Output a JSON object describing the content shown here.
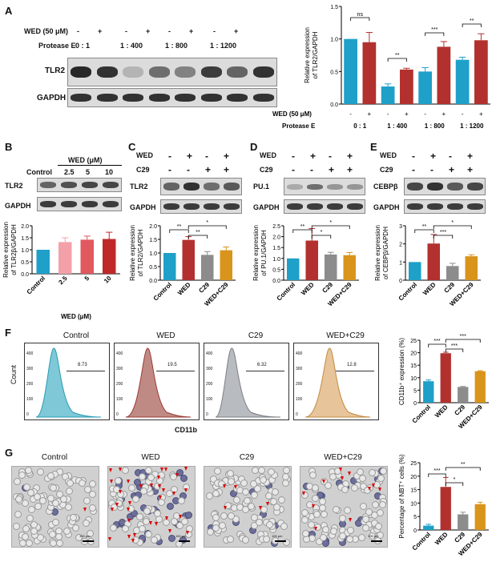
{
  "panels": [
    "A",
    "B",
    "C",
    "D",
    "E",
    "F",
    "G"
  ],
  "colors": {
    "blue": "#1fa0c8",
    "red": "#b2312e",
    "pink": "#f4a0a8",
    "lightred": "#e0595f",
    "darkred": "#c02828",
    "gray": "#8c8c8c",
    "orange": "#d9941c"
  },
  "A": {
    "row_wed": "WED (50 μM)",
    "row_protease": "Protease E",
    "wed_signs": [
      "-",
      "+",
      "-",
      "+",
      "-",
      "+",
      "-",
      "+"
    ],
    "ratios": [
      "0  :  1",
      "1  :  400",
      "1  :  800",
      "1  :  1200"
    ],
    "bands": [
      "TLR2",
      "GAPDH"
    ],
    "ylabel": "Relative expression of TLR2/GAPDH",
    "xrow_wed": "WED (50 μM)",
    "xrow_pro": "Protease E",
    "sig": [
      "ns",
      "**",
      "***",
      "**"
    ],
    "ticks": [
      "0.0",
      "0.5",
      "1.0",
      "1.5"
    ]
  },
  "B": {
    "title": "WED (μM)",
    "cols": [
      "Control",
      "2.5",
      "5",
      "10"
    ],
    "bands": [
      "TLR2",
      "GAPDH"
    ],
    "ylabel": "Relative expression of TLR2β/GAPDH",
    "xlabel": "WED (μM)",
    "ticks": [
      "0.0",
      "0.5",
      "1.0",
      "1.5",
      "2.0"
    ]
  },
  "C": {
    "row1": "WED",
    "row2": "C29",
    "signs1": [
      "-",
      "+",
      "-",
      "+"
    ],
    "signs2": [
      "-",
      "-",
      "+",
      "+"
    ],
    "bands": [
      "TLR2",
      "GAPDH"
    ],
    "ylabel": "Relative expression of TLR2/GAPDH",
    "sig": [
      "**",
      "**",
      "*"
    ],
    "ticks": [
      "0.0",
      "0.5",
      "1.0",
      "1.5",
      "2.0"
    ]
  },
  "D": {
    "row1": "WED",
    "row2": "C29",
    "signs1": [
      "-",
      "+",
      "-",
      "+"
    ],
    "signs2": [
      "-",
      "-",
      "+",
      "+"
    ],
    "bands": [
      "PU.1",
      "GAPDH"
    ],
    "ylabel": "Relative expression of PU.1/GAPDH",
    "sig": [
      "**",
      "*",
      "*"
    ],
    "ticks": [
      "0.0",
      "0.5",
      "1.0",
      "1.5",
      "2.0",
      "2.5"
    ]
  },
  "E": {
    "row1": "WED",
    "row2": "C29",
    "signs1": [
      "-",
      "+",
      "-",
      "+"
    ],
    "signs2": [
      "-",
      "-",
      "+",
      "+"
    ],
    "bands": [
      "CEBPβ",
      "GAPDH"
    ],
    "ylabel": "Relative expression of CEBPβ/GAPDH",
    "sig": [
      "**",
      "***",
      "*"
    ],
    "ticks": [
      "0",
      "1",
      "2",
      "3"
    ]
  },
  "F": {
    "titles": [
      "Control",
      "WED",
      "C29",
      "WED+C29"
    ],
    "gates": [
      "8.73",
      "19.5",
      "6.32",
      "12.8"
    ],
    "yaxis": "Count",
    "xaxis": "CD11b",
    "hist_ticks": [
      "400",
      "300",
      "200",
      "100",
      "0"
    ],
    "ylabel": "CD11b⁺ expression (%)",
    "sig": [
      "***",
      "***",
      "***"
    ],
    "ticks": [
      "0",
      "5",
      "10",
      "15",
      "20",
      "25"
    ]
  },
  "G": {
    "titles": [
      "Control",
      "WED",
      "C29",
      "WED+C29"
    ],
    "ylabel": "Percentage of NBT⁺ cells (%)",
    "sig": [
      "***",
      "*",
      "**"
    ],
    "ticks": [
      "0",
      "5",
      "10",
      "15",
      "20",
      "25"
    ],
    "scale": "100 μm"
  },
  "chart_data": [
    {
      "panel": "A",
      "type": "bar",
      "title": "",
      "ylabel": "Relative expression of TLR2/GAPDH",
      "ylim": [
        0,
        1.5
      ],
      "categories": [
        "0:1 -",
        "0:1 +",
        "1:400 -",
        "1:400 +",
        "1:800 -",
        "1:800 +",
        "1:1200 -",
        "1:1200 +"
      ],
      "values": [
        1.0,
        0.95,
        0.27,
        0.53,
        0.5,
        0.88,
        0.68,
        0.98
      ],
      "errors": [
        0,
        0.15,
        0.04,
        0.02,
        0.06,
        0.08,
        0.04,
        0.1
      ],
      "colors": [
        "blue",
        "red",
        "blue",
        "red",
        "blue",
        "red",
        "blue",
        "red"
      ]
    },
    {
      "panel": "B",
      "type": "bar",
      "ylabel": "Relative expression of TLR2β/GAPDH",
      "xlabel": "WED (μM)",
      "ylim": [
        0,
        2.0
      ],
      "categories": [
        "Control",
        "2.5",
        "5",
        "10"
      ],
      "values": [
        1.0,
        1.32,
        1.42,
        1.45
      ],
      "errors": [
        0,
        0.18,
        0.15,
        0.28
      ],
      "colors": [
        "blue",
        "pink",
        "lightred",
        "darkred"
      ]
    },
    {
      "panel": "C",
      "type": "bar",
      "ylabel": "Relative expression of TLR2/GAPDH",
      "ylim": [
        0,
        2.0
      ],
      "categories": [
        "Control",
        "WED",
        "C29",
        "WED+C29"
      ],
      "values": [
        1.0,
        1.48,
        0.93,
        1.1
      ],
      "errors": [
        0,
        0.12,
        0.12,
        0.12
      ],
      "colors": [
        "blue",
        "red",
        "gray",
        "orange"
      ]
    },
    {
      "panel": "D",
      "type": "bar",
      "ylabel": "Relative expression of PU.1/GAPDH",
      "ylim": [
        0,
        2.5
      ],
      "categories": [
        "Control",
        "WED",
        "C29",
        "WED+C29"
      ],
      "values": [
        1.0,
        1.82,
        1.18,
        1.15
      ],
      "errors": [
        0,
        0.55,
        0.1,
        0.12
      ],
      "colors": [
        "blue",
        "red",
        "gray",
        "orange"
      ]
    },
    {
      "panel": "E",
      "type": "bar",
      "ylabel": "Relative expression of CEBPβ/GAPDH",
      "ylim": [
        0,
        3
      ],
      "categories": [
        "Control",
        "WED",
        "C29",
        "WED+C29"
      ],
      "values": [
        1.0,
        2.02,
        0.78,
        1.32
      ],
      "errors": [
        0,
        0.5,
        0.15,
        0.08
      ],
      "colors": [
        "blue",
        "red",
        "gray",
        "orange"
      ]
    },
    {
      "panel": "F",
      "type": "bar",
      "ylabel": "CD11b⁺ expression (%)",
      "ylim": [
        0,
        25
      ],
      "categories": [
        "Control",
        "WED",
        "C29",
        "WED+C29"
      ],
      "values": [
        8.6,
        19.8,
        6.3,
        12.6
      ],
      "errors": [
        0.5,
        0.4,
        0.2,
        0.2
      ],
      "colors": [
        "blue",
        "red",
        "gray",
        "orange"
      ]
    },
    {
      "panel": "G",
      "type": "bar",
      "ylabel": "Percentage of NBT⁺ cells (%)",
      "ylim": [
        0,
        25
      ],
      "categories": [
        "Control",
        "WED",
        "C29",
        "WED+C29"
      ],
      "values": [
        1.6,
        16.0,
        5.8,
        9.6
      ],
      "errors": [
        0.5,
        3.5,
        0.8,
        0.7
      ],
      "colors": [
        "blue",
        "red",
        "gray",
        "orange"
      ]
    }
  ]
}
